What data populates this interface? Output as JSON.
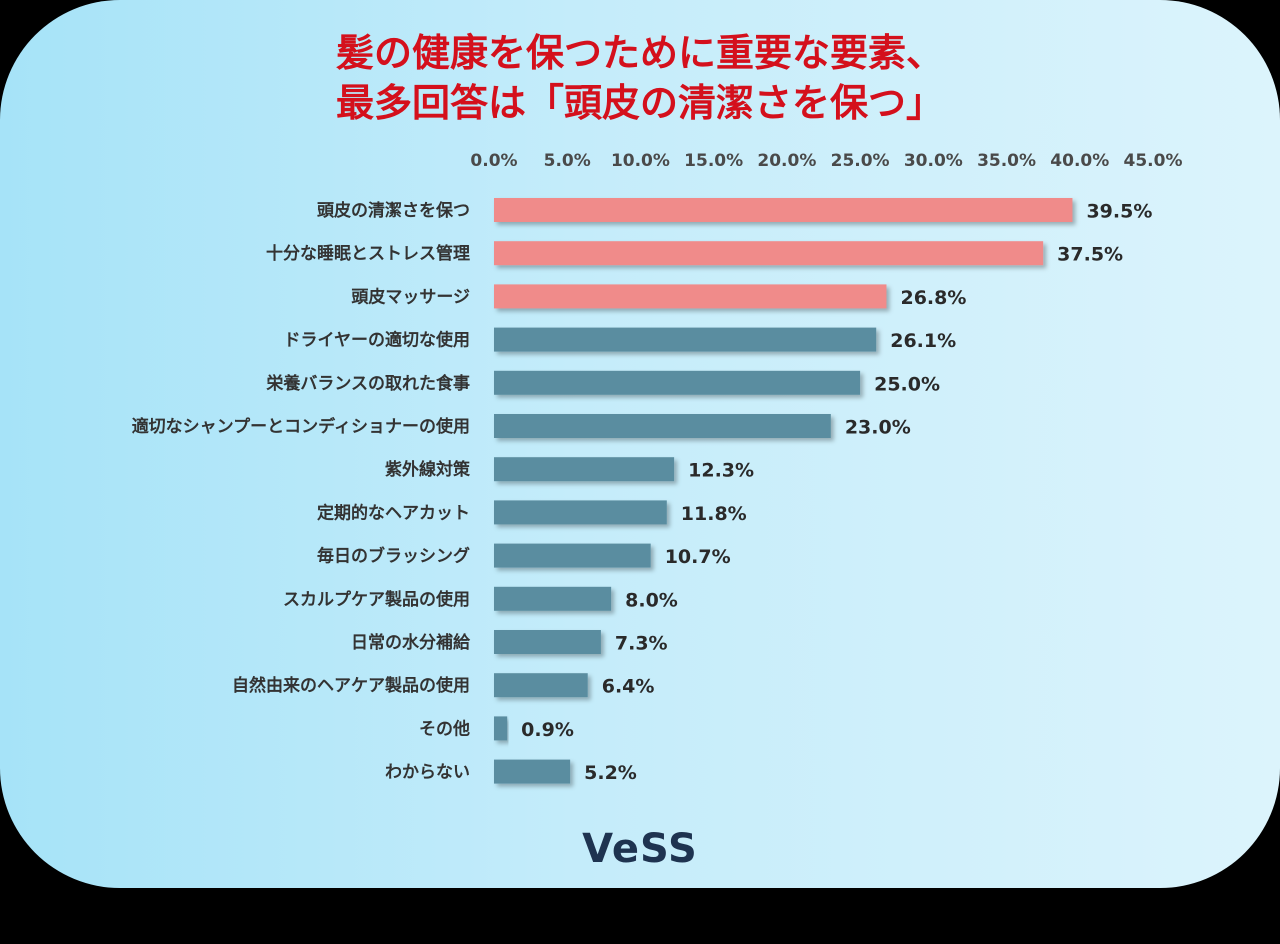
{
  "title": {
    "line1": "髪の健康を保つために重要な要素、",
    "line2": "最多回答は「頭皮の清潔さを保つ」"
  },
  "logo": "VeSS",
  "colors": {
    "highlight": "#f08b8a",
    "default": "#5a8da0",
    "title": "#d4101c"
  },
  "chart_data": {
    "type": "bar",
    "orientation": "horizontal",
    "x_ticks": [
      "0.0%",
      "5.0%",
      "10.0%",
      "15.0%",
      "20.0%",
      "25.0%",
      "30.0%",
      "35.0%",
      "40.0%",
      "45.0%"
    ],
    "xlim": [
      0,
      45
    ],
    "axis_position": "top",
    "grid": false,
    "categories": [
      "頭皮の清潔さを保つ",
      "十分な睡眠とストレス管理",
      "頭皮マッサージ",
      "ドライヤーの適切な使用",
      "栄養バランスの取れた食事",
      "適切なシャンプーとコンディショナーの使用",
      "紫外線対策",
      "定期的なヘアカット",
      "毎日のブラッシング",
      "スカルプケア製品の使用",
      "日常の水分補給",
      "自然由来のヘアケア製品の使用",
      "その他",
      "わからない"
    ],
    "values": [
      39.5,
      37.5,
      26.8,
      26.1,
      25.0,
      23.0,
      12.3,
      11.8,
      10.7,
      8.0,
      7.3,
      6.4,
      0.9,
      5.2
    ],
    "value_labels": [
      "39.5%",
      "37.5%",
      "26.8%",
      "26.1%",
      "25.0%",
      "23.0%",
      "12.3%",
      "11.8%",
      "10.7%",
      "8.0%",
      "7.3%",
      "6.4%",
      "0.9%",
      "5.2%"
    ],
    "highlighted_count": 3
  }
}
